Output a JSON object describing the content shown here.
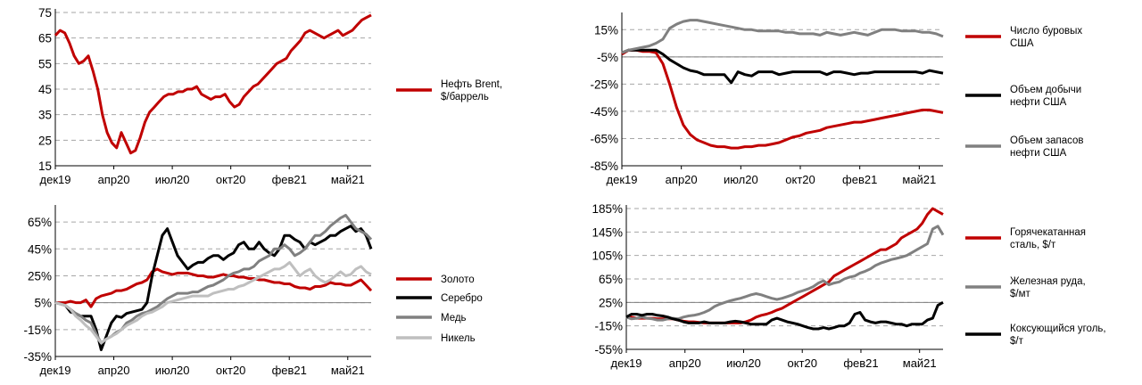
{
  "colors": {
    "red": "#c00000",
    "black": "#000000",
    "gray": "#808080",
    "lightgray": "#bfbfbf",
    "grid": "#a6a6a6"
  },
  "chart_data": [
    {
      "id": "oil",
      "type": "line",
      "title": "",
      "y_ticks": [
        "15",
        "25",
        "35",
        "45",
        "55",
        "65",
        "75"
      ],
      "ylim": [
        15,
        75
      ],
      "x_ticks": [
        "дек19",
        "апр20",
        "июл20",
        "окт20",
        "фев21",
        "май21"
      ],
      "grid": true,
      "legend": "right",
      "series": [
        {
          "name": "Нефть Brent, $/баррель",
          "name_lines": [
            "Нефть Brent,",
            "$/баррель"
          ],
          "color": "red",
          "values": [
            66,
            68,
            67,
            63,
            58,
            55,
            56,
            58,
            52,
            45,
            35,
            28,
            24,
            22,
            28,
            24,
            20,
            21,
            26,
            32,
            36,
            38,
            40,
            42,
            43,
            43,
            44,
            44,
            45,
            45,
            46,
            43,
            42,
            41,
            42,
            42,
            43,
            40,
            38,
            39,
            42,
            44,
            46,
            47,
            49,
            51,
            53,
            55,
            56,
            57,
            60,
            62,
            64,
            67,
            68,
            67,
            66,
            65,
            66,
            67,
            68,
            66,
            67,
            68,
            70,
            72,
            73,
            74
          ]
        }
      ]
    },
    {
      "id": "usoil",
      "type": "line",
      "title": "",
      "y_ticks": [
        "-85%",
        "-65%",
        "-45%",
        "-25%",
        "-5%",
        "15%"
      ],
      "ylim": [
        -85,
        25
      ],
      "x_ticks": [
        "дек19",
        "апр20",
        "июл20",
        "окт20",
        "фев21",
        "май21"
      ],
      "grid": true,
      "legend": "right",
      "series": [
        {
          "name": "Число буровых США",
          "name_lines": [
            "Число буровых",
            "США"
          ],
          "color": "red",
          "values": [
            -3,
            0,
            0,
            -1,
            -1,
            -2,
            -10,
            -25,
            -42,
            -55,
            -62,
            -66,
            -68,
            -70,
            -71,
            -71,
            -72,
            -72,
            -71,
            -71,
            -70,
            -70,
            -69,
            -68,
            -66,
            -64,
            -63,
            -61,
            -60,
            -59,
            -57,
            -56,
            -55,
            -54,
            -53,
            -53,
            -52,
            -51,
            -50,
            -49,
            -48,
            -47,
            -46,
            -45,
            -44,
            -44,
            -45,
            -46
          ]
        },
        {
          "name": "Объем добычи нефти США",
          "name_lines": [
            "Объем добычи",
            "нефти США"
          ],
          "color": "black",
          "values": [
            -2,
            0,
            0,
            0,
            0,
            0,
            -3,
            -7,
            -10,
            -13,
            -15,
            -16,
            -18,
            -18,
            -18,
            -18,
            -24,
            -16,
            -18,
            -19,
            -16,
            -16,
            -16,
            -18,
            -17,
            -16,
            -16,
            -16,
            -16,
            -16,
            -18,
            -16,
            -16,
            -17,
            -18,
            -17,
            -17,
            -16,
            -16,
            -16,
            -16,
            -16,
            -16,
            -16,
            -17,
            -15,
            -16,
            -17
          ]
        },
        {
          "name": "Объем запасов нефти США",
          "name_lines": [
            "Объем запасов",
            "нефти США"
          ],
          "color": "gray",
          "values": [
            -2,
            0,
            1,
            2,
            3,
            5,
            8,
            16,
            19,
            21,
            22,
            22,
            21,
            20,
            19,
            18,
            17,
            16,
            15,
            15,
            14,
            14,
            14,
            14,
            13,
            13,
            12,
            12,
            12,
            11,
            13,
            12,
            11,
            12,
            13,
            12,
            11,
            13,
            15,
            15,
            15,
            14,
            14,
            14,
            13,
            13,
            12,
            10
          ]
        }
      ]
    },
    {
      "id": "metals",
      "type": "line",
      "title": "",
      "y_ticks": [
        "-35%",
        "-15%",
        "5%",
        "25%",
        "45%",
        "65%"
      ],
      "ylim": [
        -35,
        75
      ],
      "x_ticks": [
        "дек19",
        "апр20",
        "июл20",
        "окт20",
        "фев21",
        "май21"
      ],
      "grid": true,
      "legend": "right",
      "series": [
        {
          "name": "Золото",
          "color": "red",
          "values": [
            5,
            5,
            5,
            6,
            5,
            5,
            7,
            2,
            8,
            10,
            11,
            12,
            14,
            14,
            15,
            17,
            19,
            20,
            22,
            28,
            30,
            28,
            27,
            26,
            27,
            27,
            27,
            26,
            25,
            25,
            24,
            24,
            25,
            26,
            25,
            25,
            24,
            24,
            23,
            23,
            22,
            22,
            21,
            20,
            20,
            19,
            19,
            17,
            16,
            16,
            15,
            17,
            17,
            18,
            20,
            19,
            19,
            18,
            18,
            20,
            22,
            18,
            14
          ]
        },
        {
          "name": "Серебро",
          "color": "black",
          "values": [
            5,
            4,
            3,
            -2,
            -3,
            -5,
            -5,
            -5,
            -15,
            -30,
            -20,
            -10,
            -5,
            -6,
            -3,
            -2,
            -1,
            0,
            5,
            25,
            40,
            55,
            60,
            50,
            40,
            35,
            30,
            33,
            35,
            35,
            38,
            40,
            40,
            37,
            40,
            42,
            48,
            50,
            45,
            45,
            50,
            45,
            42,
            40,
            45,
            55,
            55,
            52,
            50,
            45,
            50,
            48,
            50,
            52,
            55,
            55,
            58,
            60,
            62,
            58,
            60,
            55,
            45
          ]
        },
        {
          "name": "Медь",
          "color": "gray",
          "values": [
            5,
            4,
            3,
            0,
            -3,
            -5,
            -8,
            -10,
            -18,
            -25,
            -22,
            -20,
            -17,
            -15,
            -10,
            -8,
            -5,
            -3,
            -2,
            0,
            2,
            5,
            8,
            10,
            12,
            12,
            12,
            13,
            13,
            15,
            17,
            18,
            20,
            22,
            25,
            27,
            28,
            30,
            30,
            32,
            36,
            38,
            40,
            45,
            45,
            48,
            45,
            40,
            42,
            45,
            50,
            55,
            55,
            58,
            62,
            65,
            68,
            70,
            65,
            60,
            58,
            56,
            52
          ]
        },
        {
          "name": "Никель",
          "color": "lightgray",
          "values": [
            5,
            4,
            3,
            0,
            -5,
            -8,
            -12,
            -15,
            -20,
            -25,
            -22,
            -20,
            -18,
            -15,
            -12,
            -10,
            -8,
            -5,
            -3,
            -2,
            0,
            2,
            5,
            6,
            7,
            8,
            9,
            10,
            10,
            10,
            10,
            12,
            13,
            14,
            15,
            15,
            17,
            18,
            20,
            22,
            24,
            26,
            28,
            30,
            30,
            32,
            35,
            30,
            25,
            28,
            30,
            25,
            22,
            20,
            22,
            25,
            28,
            25,
            26,
            30,
            32,
            28,
            26
          ]
        }
      ]
    },
    {
      "id": "steel",
      "type": "line",
      "title": "",
      "y_ticks": [
        "-55%",
        "-15%",
        "25%",
        "65%",
        "105%",
        "145%",
        "185%"
      ],
      "ylim": [
        -55,
        185
      ],
      "x_ticks": [
        "дек19",
        "апр20",
        "июл20",
        "окт20",
        "фев21",
        "май21"
      ],
      "grid": true,
      "legend": "right",
      "series": [
        {
          "name": "Горячекатанная сталь, $/т",
          "name_lines": [
            "Горячекатанная",
            "сталь, $/т"
          ],
          "color": "red",
          "values": [
            0,
            0,
            -2,
            -2,
            -2,
            -2,
            -3,
            -3,
            -3,
            -3,
            -5,
            -7,
            -8,
            -8,
            -9,
            -10,
            -10,
            -10,
            -10,
            -10,
            -10,
            -10,
            -10,
            -8,
            -5,
            0,
            3,
            5,
            8,
            12,
            15,
            20,
            25,
            30,
            35,
            40,
            45,
            50,
            55,
            60,
            70,
            75,
            80,
            85,
            90,
            95,
            100,
            105,
            110,
            115,
            115,
            120,
            125,
            135,
            140,
            145,
            150,
            160,
            175,
            185,
            180,
            175
          ]
        },
        {
          "name": "Железная руда, $/мт",
          "name_lines": [
            "Железная руда,",
            "$/мт"
          ],
          "color": "gray",
          "values": [
            0,
            -3,
            -2,
            0,
            -2,
            -3,
            -5,
            -5,
            -3,
            -2,
            -3,
            0,
            2,
            3,
            5,
            8,
            12,
            18,
            22,
            25,
            28,
            30,
            32,
            35,
            38,
            40,
            38,
            35,
            32,
            30,
            32,
            35,
            38,
            42,
            45,
            48,
            52,
            58,
            62,
            55,
            58,
            60,
            65,
            68,
            70,
            75,
            78,
            82,
            88,
            92,
            95,
            98,
            100,
            102,
            105,
            110,
            115,
            120,
            125,
            150,
            155,
            140
          ]
        },
        {
          "name": "Коксующийся уголь, $/т",
          "name_lines": [
            "Коксующийся уголь,",
            "$/т"
          ],
          "color": "black",
          "values": [
            0,
            5,
            5,
            3,
            5,
            5,
            3,
            2,
            0,
            -3,
            -5,
            -8,
            -10,
            -10,
            -10,
            -8,
            -10,
            -10,
            -10,
            -10,
            -8,
            -7,
            -8,
            -10,
            -12,
            -12,
            -12,
            -12,
            -5,
            -2,
            -5,
            -8,
            -10,
            -12,
            -15,
            -18,
            -20,
            -20,
            -18,
            -20,
            -18,
            -15,
            -15,
            -10,
            5,
            8,
            -5,
            -8,
            -10,
            -8,
            -8,
            -10,
            -12,
            -12,
            -15,
            -12,
            -12,
            -12,
            -5,
            -2,
            20,
            25
          ]
        }
      ]
    }
  ]
}
